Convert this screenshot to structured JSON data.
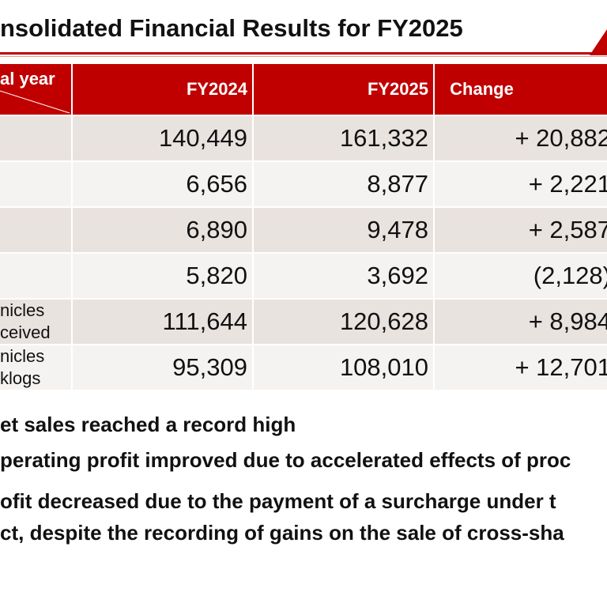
{
  "page": {
    "title": "nsolidated Financial Results for FY2025"
  },
  "table": {
    "corner_label": "al year",
    "headers": [
      "FY2024",
      "FY2025",
      "Change"
    ],
    "rows": [
      {
        "label": "",
        "fy2024": "140,449",
        "fy2025": "161,332",
        "change": "+ 20,882"
      },
      {
        "label": "",
        "fy2024": "6,656",
        "fy2025": "8,877",
        "change": "+ 2,221"
      },
      {
        "label": "",
        "fy2024": "6,890",
        "fy2025": "9,478",
        "change": "+ 2,587"
      },
      {
        "label": "",
        "fy2024": "5,820",
        "fy2025": "3,692",
        "change": "(2,128)"
      },
      {
        "label": "nicles\nceived",
        "fy2024": "111,644",
        "fy2025": "120,628",
        "change": "+ 8,984"
      },
      {
        "label": "nicles\nklogs",
        "fy2024": "95,309",
        "fy2025": "108,010",
        "change": "+ 12,701"
      }
    ]
  },
  "notes": [
    "et sales reached a record high",
    "perating profit improved due to accelerated effects of proc",
    "ofit decreased due to the payment of a surcharge under t",
    "ct, despite the recording of gains on the sale of cross-sha"
  ],
  "colors": {
    "accent": "#c00000",
    "row_dark": "#e9e3e0",
    "row_light": "#f5f3f1"
  }
}
